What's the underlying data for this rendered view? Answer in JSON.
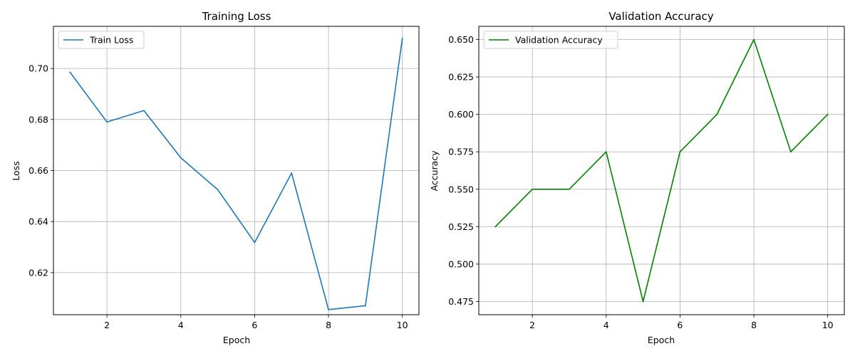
{
  "chart_data": [
    {
      "type": "line",
      "title": "Training Loss",
      "xlabel": "Epoch",
      "ylabel": "Loss",
      "x": [
        1,
        2,
        3,
        4,
        5,
        6,
        7,
        8,
        9,
        10
      ],
      "series": [
        {
          "name": "Train Loss",
          "color": "#1f77b4",
          "values": [
            0.6985,
            0.679,
            0.6835,
            0.665,
            0.6525,
            0.6318,
            0.659,
            0.6055,
            0.607,
            0.7118
          ]
        }
      ],
      "xlim": [
        0.55,
        10.45
      ],
      "ylim": [
        0.6035,
        0.7165
      ],
      "xticks": [
        2,
        4,
        6,
        8,
        10
      ],
      "yticks": [
        0.62,
        0.64,
        0.66,
        0.68,
        0.7
      ],
      "ytick_labels": [
        "0.62",
        "0.64",
        "0.66",
        "0.68",
        "0.70"
      ],
      "grid": true,
      "legend": "upper-left"
    },
    {
      "type": "line",
      "title": "Validation Accuracy",
      "xlabel": "Epoch",
      "ylabel": "Accuracy",
      "x": [
        1,
        2,
        3,
        4,
        5,
        6,
        7,
        8,
        9,
        10
      ],
      "series": [
        {
          "name": "Validation Accuracy",
          "color": "#008000",
          "values": [
            0.525,
            0.55,
            0.55,
            0.575,
            0.475,
            0.575,
            0.6,
            0.65,
            0.575,
            0.6
          ]
        }
      ],
      "xlim": [
        0.55,
        10.45
      ],
      "ylim": [
        0.4662,
        0.6588
      ],
      "xticks": [
        2,
        4,
        6,
        8,
        10
      ],
      "yticks": [
        0.475,
        0.5,
        0.525,
        0.55,
        0.575,
        0.6,
        0.625,
        0.65
      ],
      "ytick_labels": [
        "0.475",
        "0.500",
        "0.525",
        "0.550",
        "0.575",
        "0.600",
        "0.625",
        "0.650"
      ],
      "grid": true,
      "legend": "upper-left"
    }
  ]
}
